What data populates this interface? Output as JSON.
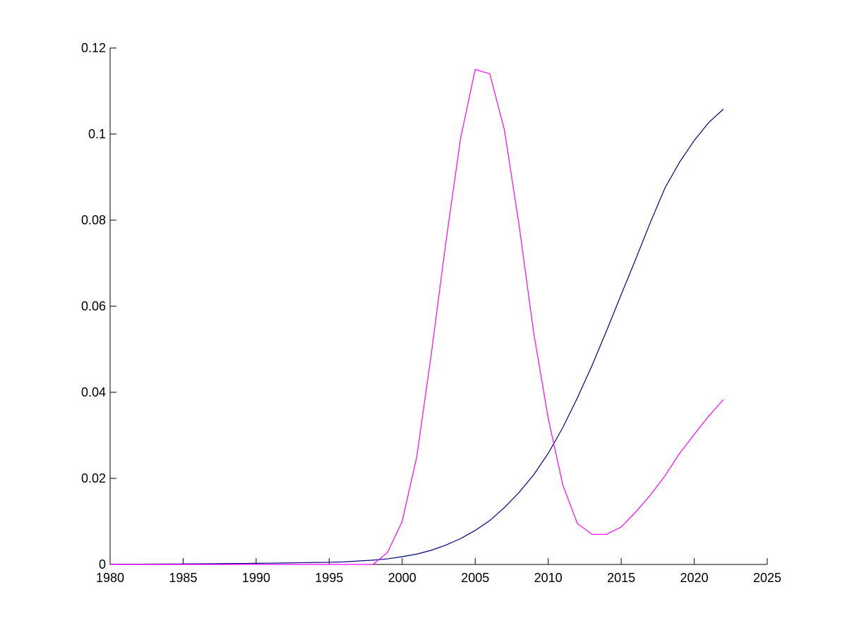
{
  "chart_data": {
    "type": "line",
    "x": [
      1980,
      1981,
      1982,
      1983,
      1984,
      1985,
      1986,
      1987,
      1988,
      1989,
      1990,
      1991,
      1992,
      1993,
      1994,
      1995,
      1996,
      1997,
      1998,
      1999,
      2000,
      2001,
      2002,
      2003,
      2004,
      2005,
      2006,
      2007,
      2008,
      2009,
      2010,
      2011,
      2012,
      2013,
      2014,
      2015,
      2016,
      2017,
      2018,
      2019,
      2020,
      2021,
      2022
    ],
    "series": [
      {
        "color": "#000080",
        "values": [
          5e-05,
          6e-05,
          7e-05,
          8e-05,
          0.0001,
          0.00012,
          0.00014,
          0.00016,
          0.0002,
          0.00023,
          0.00027,
          0.0003,
          0.00035,
          0.0004,
          0.00045,
          0.0005,
          0.0006,
          0.0008,
          0.001,
          0.0013,
          0.0018,
          0.0024,
          0.0033,
          0.0045,
          0.006,
          0.0079,
          0.0102,
          0.0132,
          0.0167,
          0.0208,
          0.0258,
          0.0318,
          0.0387,
          0.0462,
          0.0543,
          0.0627,
          0.071,
          0.0795,
          0.0875,
          0.0935,
          0.0985,
          0.1027,
          0.1058
        ]
      },
      {
        "color": "#ff00ff",
        "values": [
          0,
          0,
          0,
          0,
          0,
          0,
          0,
          0,
          0,
          0,
          0,
          0,
          0,
          0,
          0,
          0,
          0,
          0,
          0,
          0.0028,
          0.01,
          0.025,
          0.049,
          0.075,
          0.099,
          0.115,
          0.114,
          0.101,
          0.079,
          0.054,
          0.034,
          0.0185,
          0.0095,
          0.007,
          0.007,
          0.0087,
          0.0122,
          0.0161,
          0.0206,
          0.0258,
          0.0302,
          0.0345,
          0.0383
        ]
      }
    ],
    "xlim": [
      1980,
      2025
    ],
    "xticks": [
      1980,
      1985,
      1990,
      1995,
      2000,
      2005,
      2010,
      2015,
      2020,
      2025
    ],
    "ylim": [
      0,
      0.12
    ],
    "yticks": [
      0,
      0.02,
      0.04,
      0.06,
      0.08,
      0.1,
      0.12
    ]
  }
}
